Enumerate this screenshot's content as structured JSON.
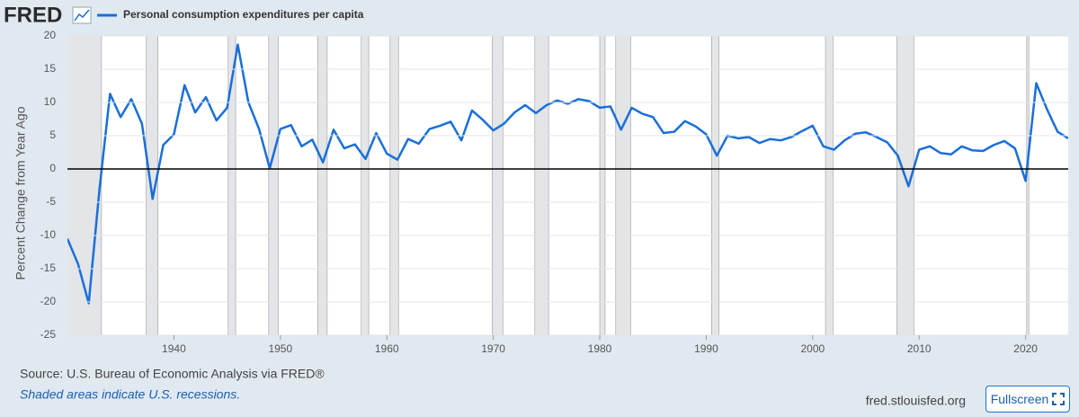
{
  "chart_data": {
    "type": "line",
    "logo": "FRED",
    "ylabel": "Percent Change from Year Ago",
    "source": "Source: U.S. Bureau of Economic Analysis via FRED®",
    "note": "Shaded areas indicate U.S. recessions.",
    "site": "fred.stlouisfed.org",
    "button": "Fullscreen",
    "x": [
      1930,
      1931,
      1932,
      1933,
      1934,
      1935,
      1936,
      1937,
      1938,
      1939,
      1940,
      1941,
      1942,
      1943,
      1944,
      1945,
      1946,
      1947,
      1948,
      1949,
      1950,
      1951,
      1952,
      1953,
      1954,
      1955,
      1956,
      1957,
      1958,
      1959,
      1960,
      1961,
      1962,
      1963,
      1964,
      1965,
      1966,
      1967,
      1968,
      1969,
      1970,
      1971,
      1972,
      1973,
      1974,
      1975,
      1976,
      1977,
      1978,
      1979,
      1980,
      1981,
      1982,
      1983,
      1984,
      1985,
      1986,
      1987,
      1988,
      1989,
      1990,
      1991,
      1992,
      1993,
      1994,
      1995,
      1996,
      1997,
      1998,
      1999,
      2000,
      2001,
      2002,
      2003,
      2004,
      2005,
      2006,
      2007,
      2008,
      2009,
      2010,
      2011,
      2012,
      2013,
      2014,
      2015,
      2016,
      2017,
      2018,
      2019,
      2020,
      2021,
      2022,
      2023,
      2024
    ],
    "series": [
      {
        "name": "Personal consumption expenditures per capita",
        "color": "#1a6fd8",
        "values": [
          -10.5,
          -14.3,
          -20.2,
          -3.2,
          11.3,
          7.8,
          10.5,
          6.8,
          -4.5,
          3.6,
          5.2,
          12.6,
          8.5,
          10.8,
          7.3,
          9.2,
          18.7,
          10.0,
          6.0,
          0.1,
          6.0,
          6.6,
          3.4,
          4.4,
          1.0,
          5.9,
          3.1,
          3.7,
          1.5,
          5.4,
          2.3,
          1.4,
          4.5,
          3.8,
          6.0,
          6.5,
          7.1,
          4.3,
          8.8,
          7.4,
          5.8,
          6.8,
          8.5,
          9.6,
          8.4,
          9.6,
          10.3,
          9.8,
          10.5,
          10.2,
          9.2,
          9.4,
          5.9,
          9.2,
          8.3,
          7.8,
          5.4,
          5.6,
          7.2,
          6.4,
          5.2,
          2.0,
          5.0,
          4.6,
          4.8,
          3.9,
          4.5,
          4.3,
          4.8,
          5.7,
          6.5,
          3.4,
          2.9,
          4.3,
          5.3,
          5.5,
          4.8,
          4.0,
          2.0,
          -2.6,
          2.9,
          3.4,
          2.4,
          2.2,
          3.4,
          2.8,
          2.7,
          3.6,
          4.2,
          3.1,
          -1.8,
          12.9,
          9.0,
          5.6,
          4.6
        ]
      }
    ],
    "recessions": [
      [
        1929.6,
        1933.2
      ],
      [
        1937.4,
        1938.5
      ],
      [
        1945.1,
        1945.8
      ],
      [
        1948.9,
        1949.8
      ],
      [
        1953.5,
        1954.4
      ],
      [
        1957.6,
        1958.3
      ],
      [
        1960.3,
        1961.1
      ],
      [
        1969.9,
        1970.9
      ],
      [
        1973.9,
        1975.2
      ],
      [
        1980.0,
        1980.5
      ],
      [
        1981.5,
        1982.9
      ],
      [
        1990.5,
        1991.2
      ],
      [
        2001.2,
        2001.9
      ],
      [
        2007.9,
        2009.5
      ],
      [
        2020.1,
        2020.3
      ]
    ],
    "xlim": [
      1930,
      2024
    ],
    "xticks": [
      1940,
      1950,
      1960,
      1970,
      1980,
      1990,
      2000,
      2010,
      2020
    ],
    "ylim": [
      -25,
      20
    ],
    "yticks": [
      20,
      15,
      10,
      5,
      0,
      -5,
      -10,
      -15,
      -20,
      -25
    ],
    "grid": true,
    "zero_line": true
  }
}
